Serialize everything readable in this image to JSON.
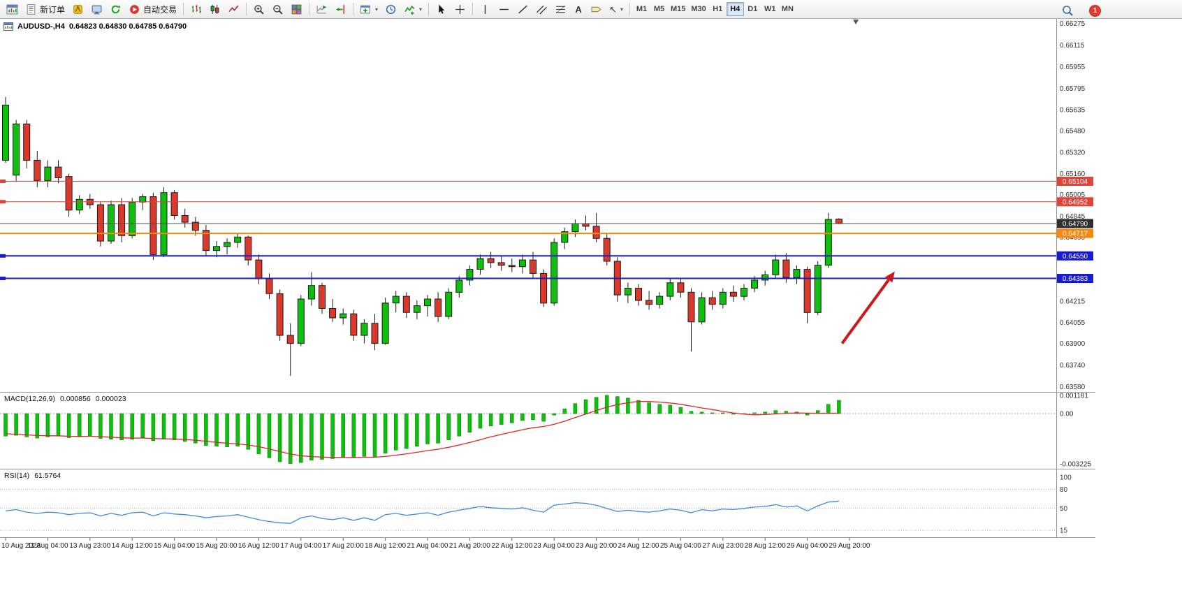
{
  "toolbar": {
    "new_order_label": "新订单",
    "autotrading_label": "自动交易",
    "timeframes": [
      "M1",
      "M5",
      "M15",
      "M30",
      "H1",
      "H4",
      "D1",
      "W1",
      "MN"
    ],
    "active_timeframe": "H4",
    "notification_count": "1"
  },
  "icons": {
    "caret": "▾",
    "text_tool": "A",
    "arrow_tool": "↖"
  },
  "chart_data": {
    "type": "candlestick",
    "title": "AUDUSD-,H4",
    "ohlc_text": "0.64823 0.64830 0.64785 0.64790",
    "price_scale": {
      "max": 0.6631,
      "min": 0.6354,
      "ticks": [
        "0.66275",
        "0.66115",
        "0.65955",
        "0.65795",
        "0.65635",
        "0.65480",
        "0.65320",
        "0.65160",
        "0.65005",
        "0.64845",
        "0.64690",
        "0.64215",
        "0.64055",
        "0.63900",
        "0.63740",
        "0.63580"
      ]
    },
    "time_label_step": 4,
    "time_labels": [
      "10 Aug 2023",
      "11 Aug 04:00",
      "13 Aug 23:00",
      "14 Aug 12:00",
      "15 Aug 04:00",
      "15 Aug 20:00",
      "16 Aug 12:00",
      "17 Aug 04:00",
      "17 Aug 20:00",
      "18 Aug 12:00",
      "21 Aug 04:00",
      "21 Aug 20:00",
      "22 Aug 12:00",
      "23 Aug 04:00",
      "23 Aug 20:00",
      "24 Aug 12:00",
      "25 Aug 04:00",
      "27 Aug 23:00",
      "28 Aug 12:00",
      "29 Aug 04:00",
      "29 Aug 20:00"
    ],
    "candles": [
      [
        0.6526,
        0.6573,
        0.6524,
        0.6567
      ],
      [
        0.6515,
        0.6556,
        0.651,
        0.6553
      ],
      [
        0.6553,
        0.6556,
        0.652,
        0.6526
      ],
      [
        0.6526,
        0.6533,
        0.6506,
        0.6511
      ],
      [
        0.6511,
        0.6526,
        0.6506,
        0.6521
      ],
      [
        0.6521,
        0.6526,
        0.6509,
        0.6513
      ],
      [
        0.6514,
        0.6516,
        0.6484,
        0.6489
      ],
      [
        0.6489,
        0.65,
        0.6486,
        0.6497
      ],
      [
        0.6497,
        0.6501,
        0.649,
        0.6493
      ],
      [
        0.6493,
        0.6495,
        0.6462,
        0.6466
      ],
      [
        0.6466,
        0.6496,
        0.6464,
        0.6493
      ],
      [
        0.6493,
        0.6498,
        0.6465,
        0.647
      ],
      [
        0.647,
        0.6498,
        0.6468,
        0.6495
      ],
      [
        0.6495,
        0.6501,
        0.6489,
        0.6499
      ],
      [
        0.6499,
        0.6502,
        0.6452,
        0.6456
      ],
      [
        0.6456,
        0.6506,
        0.6454,
        0.6502
      ],
      [
        0.6502,
        0.6504,
        0.6482,
        0.6485
      ],
      [
        0.6485,
        0.649,
        0.6476,
        0.648
      ],
      [
        0.648,
        0.6484,
        0.647,
        0.6474
      ],
      [
        0.6474,
        0.6478,
        0.6455,
        0.6459
      ],
      [
        0.6459,
        0.6466,
        0.6454,
        0.6462
      ],
      [
        0.6462,
        0.6468,
        0.6456,
        0.6465
      ],
      [
        0.6465,
        0.6472,
        0.6461,
        0.6469
      ],
      [
        0.6469,
        0.647,
        0.6448,
        0.6452
      ],
      [
        0.6452,
        0.6456,
        0.6434,
        0.6438
      ],
      [
        0.6438,
        0.6442,
        0.6423,
        0.6427
      ],
      [
        0.6427,
        0.643,
        0.6392,
        0.6396
      ],
      [
        0.6396,
        0.6405,
        0.6366,
        0.639
      ],
      [
        0.639,
        0.6426,
        0.6388,
        0.6423
      ],
      [
        0.6423,
        0.6443,
        0.6418,
        0.6433
      ],
      [
        0.6433,
        0.6435,
        0.6412,
        0.6416
      ],
      [
        0.6416,
        0.6423,
        0.6406,
        0.6409
      ],
      [
        0.6409,
        0.6416,
        0.6404,
        0.6412
      ],
      [
        0.6412,
        0.6415,
        0.6392,
        0.6396
      ],
      [
        0.6396,
        0.6408,
        0.639,
        0.6405
      ],
      [
        0.6405,
        0.6412,
        0.6385,
        0.639
      ],
      [
        0.639,
        0.6424,
        0.6389,
        0.642
      ],
      [
        0.642,
        0.6429,
        0.6413,
        0.6425
      ],
      [
        0.6425,
        0.6428,
        0.6409,
        0.6413
      ],
      [
        0.6413,
        0.6422,
        0.6408,
        0.6418
      ],
      [
        0.6418,
        0.6426,
        0.641,
        0.6423
      ],
      [
        0.6423,
        0.6428,
        0.6406,
        0.641
      ],
      [
        0.641,
        0.6431,
        0.6408,
        0.6428
      ],
      [
        0.6428,
        0.644,
        0.6424,
        0.6437
      ],
      [
        0.6437,
        0.6448,
        0.6433,
        0.6445
      ],
      [
        0.6445,
        0.6456,
        0.6441,
        0.6453
      ],
      [
        0.6453,
        0.6458,
        0.6446,
        0.645
      ],
      [
        0.645,
        0.6455,
        0.6444,
        0.6448
      ],
      [
        0.6448,
        0.6453,
        0.6443,
        0.6447
      ],
      [
        0.6447,
        0.6456,
        0.6442,
        0.6452
      ],
      [
        0.6452,
        0.6458,
        0.6438,
        0.6442
      ],
      [
        0.6442,
        0.6445,
        0.6417,
        0.642
      ],
      [
        0.642,
        0.6468,
        0.6418,
        0.6465
      ],
      [
        0.6465,
        0.6476,
        0.646,
        0.6473
      ],
      [
        0.6473,
        0.6482,
        0.6469,
        0.6479
      ],
      [
        0.6479,
        0.6485,
        0.6474,
        0.6477
      ],
      [
        0.6477,
        0.6487,
        0.6465,
        0.6468
      ],
      [
        0.6468,
        0.6472,
        0.6448,
        0.6451
      ],
      [
        0.6451,
        0.6454,
        0.6421,
        0.6426
      ],
      [
        0.6426,
        0.6435,
        0.642,
        0.6431
      ],
      [
        0.6431,
        0.6434,
        0.6418,
        0.6422
      ],
      [
        0.6422,
        0.6429,
        0.6415,
        0.6419
      ],
      [
        0.6419,
        0.6428,
        0.6416,
        0.6425
      ],
      [
        0.6425,
        0.6438,
        0.6422,
        0.6435
      ],
      [
        0.6435,
        0.6438,
        0.6424,
        0.6428
      ],
      [
        0.6428,
        0.6431,
        0.6384,
        0.6406
      ],
      [
        0.6406,
        0.6428,
        0.6404,
        0.6424
      ],
      [
        0.6424,
        0.6429,
        0.6415,
        0.6419
      ],
      [
        0.6419,
        0.6431,
        0.6416,
        0.6428
      ],
      [
        0.6428,
        0.6433,
        0.6421,
        0.6425
      ],
      [
        0.6425,
        0.6434,
        0.6422,
        0.6431
      ],
      [
        0.6431,
        0.644,
        0.6428,
        0.6437
      ],
      [
        0.6437,
        0.6444,
        0.6433,
        0.6441
      ],
      [
        0.6441,
        0.6456,
        0.6438,
        0.6452
      ],
      [
        0.6452,
        0.6457,
        0.6435,
        0.6439
      ],
      [
        0.6439,
        0.6448,
        0.6434,
        0.6445
      ],
      [
        0.6445,
        0.6447,
        0.6405,
        0.6413
      ],
      [
        0.6413,
        0.6451,
        0.6411,
        0.6448
      ],
      [
        0.6448,
        0.6487,
        0.6446,
        0.6482
      ],
      [
        0.64823,
        0.6483,
        0.64785,
        0.6479
      ]
    ],
    "hlines": [
      {
        "price": 0.65104,
        "label": "0.65104",
        "color": "#e04338",
        "width": 1,
        "edge_marker": true
      },
      {
        "price": 0.64952,
        "label": "0.64952",
        "color": "#e04338",
        "width": 1,
        "edge_marker": true
      },
      {
        "price": 0.6479,
        "label": "0.64790",
        "color": "#4d4d4d",
        "box_color": "#2e2e2e",
        "width": 1,
        "edge_marker": false
      },
      {
        "price": 0.64717,
        "label": "0.64717",
        "color": "#f5890f",
        "width": 2,
        "edge_marker": false
      },
      {
        "price": 0.6455,
        "label": "0.64550",
        "color": "#1a1ad0",
        "width": 2,
        "edge_marker": true
      },
      {
        "price": 0.64383,
        "label": "0.64383",
        "color": "#1a1ad0",
        "width": 2,
        "edge_marker": true
      }
    ],
    "shift_marker_bar": 80.6,
    "arrow": {
      "from_bar": 79.3,
      "from_price": 0.639,
      "to_bar": 84.3,
      "to_price": 0.64435
    },
    "colors": {
      "bull": "#0cc00c",
      "bear": "#dc392d",
      "outline": "#1b1b1b",
      "macd_hist": "#0cc00c",
      "macd_signal": "#e02525",
      "rsi_line": "#3c8ae0",
      "arrow": "#d01616"
    },
    "macd": {
      "label": "MACD(12,26,9)",
      "value_main": "0.000856",
      "value_signal": "0.000023",
      "scale": {
        "max": 0.00135,
        "min": -0.00355
      },
      "axis_labels": [
        "0.001181",
        "0.00",
        "-0.003225"
      ],
      "hist": [
        -0.00145,
        -0.0014,
        -0.0015,
        -0.00158,
        -0.0015,
        -0.00145,
        -0.00155,
        -0.0015,
        -0.00142,
        -0.0016,
        -0.00165,
        -0.0017,
        -0.00165,
        -0.00155,
        -0.00175,
        -0.00165,
        -0.0017,
        -0.0018,
        -0.0019,
        -0.00205,
        -0.0021,
        -0.00215,
        -0.0021,
        -0.0023,
        -0.0026,
        -0.00285,
        -0.0031,
        -0.00322,
        -0.00315,
        -0.003,
        -0.00295,
        -0.0029,
        -0.0028,
        -0.00285,
        -0.00275,
        -0.0028,
        -0.00255,
        -0.00235,
        -0.00225,
        -0.0021,
        -0.00195,
        -0.0019,
        -0.0017,
        -0.00145,
        -0.0012,
        -0.00095,
        -0.0008,
        -0.0007,
        -0.0006,
        -0.00045,
        -0.0004,
        -0.0005,
        -0.0001,
        0.0003,
        0.00065,
        0.0009,
        0.00105,
        0.00118,
        0.0011,
        0.001,
        0.00085,
        0.0007,
        0.0006,
        0.00055,
        0.0004,
        0.00015,
        0.0001,
        5e-05,
        5e-05,
        0.0,
        0.0,
        5e-05,
        0.0001,
        0.0002,
        0.00015,
        0.0001,
        -0.0001,
        0.0002,
        0.0006,
        0.000856
      ],
      "signal": [
        -0.0013,
        -0.00133,
        -0.00137,
        -0.00141,
        -0.00143,
        -0.00143,
        -0.00146,
        -0.00147,
        -0.00146,
        -0.00149,
        -0.00152,
        -0.00156,
        -0.00158,
        -0.00157,
        -0.00161,
        -0.00162,
        -0.00163,
        -0.00167,
        -0.00171,
        -0.00178,
        -0.00185,
        -0.00191,
        -0.00195,
        -0.00202,
        -0.00213,
        -0.00228,
        -0.00244,
        -0.0026,
        -0.00271,
        -0.00277,
        -0.0028,
        -0.00282,
        -0.00282,
        -0.00283,
        -0.00281,
        -0.00281,
        -0.00276,
        -0.00268,
        -0.00259,
        -0.00249,
        -0.00238,
        -0.00229,
        -0.00217,
        -0.00202,
        -0.00186,
        -0.00168,
        -0.0015,
        -0.00134,
        -0.00119,
        -0.00104,
        -0.00091,
        -0.00083,
        -0.00069,
        -0.00049,
        -0.00026,
        -3e-05,
        0.0002,
        0.00042,
        0.00058,
        0.0007,
        0.00078,
        0.00078,
        0.00074,
        0.00068,
        0.0006,
        0.00048,
        0.00036,
        0.00026,
        0.00014,
        4e-05,
        -4e-05,
        -8e-05,
        -6e-05,
        -2e-05,
        2e-05,
        4e-05,
        3e-05,
        2e-05,
        2e-05,
        2.3e-05
      ]
    },
    "rsi": {
      "label": "RSI(14)",
      "value": "61.5764",
      "scale": {
        "max": 112,
        "min": 4
      },
      "levels": [
        80,
        50,
        15
      ],
      "axis_labels": [
        "100",
        "80",
        "50",
        "15"
      ],
      "values": [
        46,
        48,
        44,
        42,
        44,
        43,
        40,
        42,
        43,
        38,
        42,
        39,
        43,
        44,
        38,
        43,
        41,
        40,
        38,
        35,
        37,
        38,
        40,
        36,
        32,
        29,
        27,
        26,
        35,
        38,
        34,
        32,
        35,
        31,
        35,
        31,
        40,
        42,
        39,
        41,
        43,
        39,
        44,
        47,
        50,
        53,
        51,
        50,
        49,
        51,
        47,
        44,
        55,
        57,
        59,
        58,
        55,
        50,
        45,
        47,
        45,
        44,
        46,
        49,
        47,
        43,
        48,
        46,
        49,
        48,
        50,
        52,
        53,
        56,
        52,
        54,
        46,
        54,
        60,
        61.58
      ]
    }
  }
}
